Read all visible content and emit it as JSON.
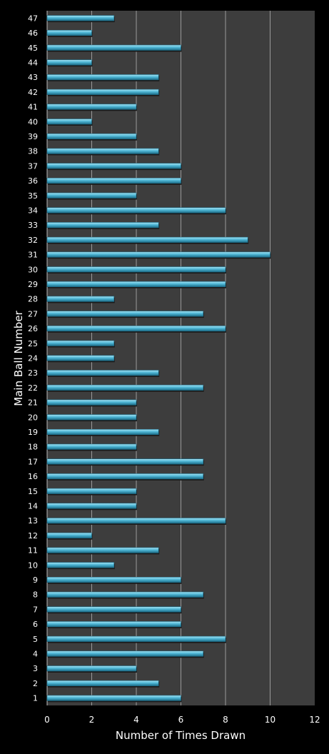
{
  "chart_data": {
    "type": "bar",
    "orientation": "horizontal",
    "title": "",
    "xlabel": "Number of Times Drawn",
    "ylabel": "Main Ball Number",
    "xlim": [
      0,
      12
    ],
    "x_ticks": [
      "0",
      "2",
      "4",
      "6",
      "8",
      "10",
      "12"
    ],
    "grid": true,
    "categories": [
      "1",
      "2",
      "3",
      "4",
      "5",
      "6",
      "7",
      "8",
      "9",
      "10",
      "11",
      "12",
      "13",
      "14",
      "15",
      "16",
      "17",
      "18",
      "19",
      "20",
      "21",
      "22",
      "23",
      "24",
      "25",
      "26",
      "27",
      "28",
      "29",
      "30",
      "31",
      "32",
      "33",
      "34",
      "35",
      "36",
      "37",
      "38",
      "39",
      "40",
      "41",
      "42",
      "43",
      "44",
      "45",
      "46",
      "47"
    ],
    "values": [
      6,
      5,
      4,
      7,
      8,
      6,
      6,
      7,
      6,
      3,
      5,
      2,
      8,
      4,
      4,
      7,
      7,
      4,
      5,
      4,
      4,
      7,
      5,
      3,
      3,
      8,
      7,
      3,
      8,
      8,
      10,
      9,
      5,
      8,
      4,
      6,
      6,
      5,
      4,
      2,
      4,
      5,
      5,
      2,
      6,
      2,
      3
    ],
    "colors": {
      "background": "#000000",
      "plot_area": "#3d3d3d",
      "gridline": "#9a9a9a",
      "bar_top": "#a8e4f4",
      "bar_mid": "#4fb7d6",
      "bar_bottom": "#1c6b86",
      "text": "#ffffff"
    }
  }
}
